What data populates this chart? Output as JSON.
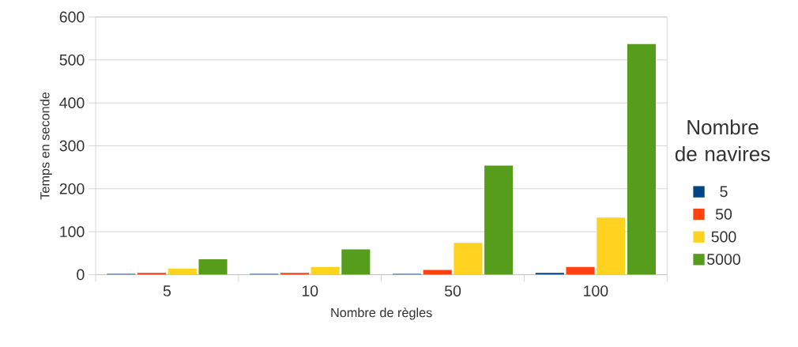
{
  "chart_data": {
    "type": "bar",
    "xlabel": "Nombre de règles",
    "ylabel": "Temps en seconde",
    "legend_title": "Nombre de navires",
    "categories": [
      "5",
      "10",
      "50",
      "100"
    ],
    "series": [
      {
        "name": "5",
        "color": "#004586",
        "values": [
          2,
          2,
          2,
          4
        ]
      },
      {
        "name": "50",
        "color": "#ff420e",
        "values": [
          4,
          4,
          11,
          18
        ]
      },
      {
        "name": "500",
        "color": "#ffd320",
        "values": [
          14,
          18,
          74,
          133
        ]
      },
      {
        "name": "5000",
        "color": "#579d1c",
        "values": [
          36,
          59,
          254,
          537
        ]
      }
    ],
    "ylim": [
      0,
      600
    ],
    "yticks": [
      0,
      100,
      200,
      300,
      400,
      500,
      600
    ],
    "grid": "y",
    "legend": "right"
  }
}
